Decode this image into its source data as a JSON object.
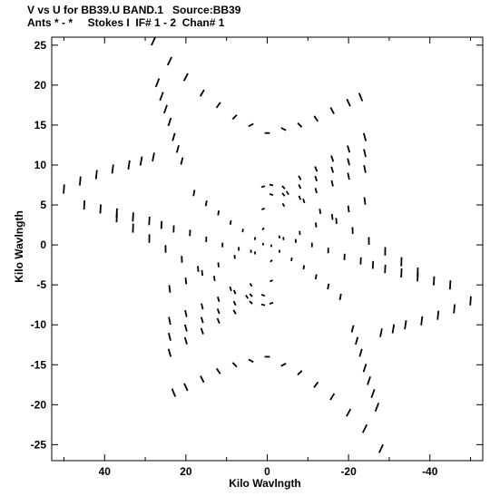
{
  "header": {
    "line1": "V vs U for BB39.U BAND.1   Source:BB39",
    "line2": "Ants * - *     Stokes I  IF# 1 - 2  Chan# 1"
  },
  "chart_data": {
    "type": "scatter",
    "title": "V vs U for BB39.U BAND.1   Source:BB39",
    "subtitle": "Ants * - *     Stokes I  IF# 1 - 2  Chan# 1",
    "xlabel": "Kilo Wavlngth",
    "ylabel": "Kilo Wavlngth",
    "xlim": [
      53,
      -53
    ],
    "ylim": [
      -27,
      26
    ],
    "x_reversed": true,
    "xticks": [
      40,
      20,
      0,
      -20,
      -40
    ],
    "xtick_labels": [
      "40",
      "20",
      "0",
      "-20",
      "-40"
    ],
    "yticks": [
      25,
      20,
      15,
      10,
      5,
      0,
      -5,
      -10,
      -15,
      -20,
      -25
    ],
    "ytick_labels": [
      "25",
      "20",
      "15",
      "10",
      "5",
      "0",
      "-5",
      "-10",
      "-15",
      "-20",
      "-25"
    ],
    "grid": false,
    "marker": "short dash",
    "series": [
      {
        "points": [
          [
            28,
            25.5
          ],
          [
            24,
            23
          ],
          [
            20,
            21
          ],
          [
            16,
            19
          ],
          [
            12,
            17.5
          ],
          [
            8,
            16
          ],
          [
            4,
            15
          ],
          [
            0,
            14
          ],
          [
            -4,
            14.5
          ],
          [
            -8,
            15
          ],
          [
            -12,
            15.8
          ],
          [
            -16,
            16.8
          ],
          [
            -20,
            17.8
          ],
          [
            -23,
            18.5
          ],
          [
            -28,
            -25.5
          ],
          [
            -24,
            -23
          ],
          [
            -20,
            -21
          ],
          [
            -16,
            -19
          ],
          [
            -12,
            -17.5
          ],
          [
            -8,
            -16
          ],
          [
            -4,
            -15
          ],
          [
            0,
            -14
          ],
          [
            4,
            -14.5
          ],
          [
            8,
            -15
          ],
          [
            12,
            -15.8
          ],
          [
            16,
            -16.8
          ],
          [
            20,
            -17.8
          ],
          [
            23,
            -18.5
          ],
          [
            27,
            20.3
          ],
          [
            26,
            18.6
          ],
          [
            25,
            17
          ],
          [
            24,
            15.4
          ],
          [
            23,
            13.5
          ],
          [
            22,
            12
          ],
          [
            21,
            10.5
          ],
          [
            -27,
            -20.3
          ],
          [
            -26,
            -18.6
          ],
          [
            -25,
            -17
          ],
          [
            -24,
            -15.4
          ],
          [
            -23,
            -13.5
          ],
          [
            -22,
            -12
          ],
          [
            -21,
            -10.5
          ],
          [
            50,
            7
          ],
          [
            46,
            8
          ],
          [
            42,
            8.8
          ],
          [
            38,
            9.5
          ],
          [
            34,
            10
          ],
          [
            31,
            10.5
          ],
          [
            28,
            11
          ],
          [
            -50,
            -7
          ],
          [
            -46,
            -8
          ],
          [
            -42,
            -8.8
          ],
          [
            -38,
            -9.5
          ],
          [
            -34,
            -10
          ],
          [
            -31,
            -10.5
          ],
          [
            -28,
            -11
          ],
          [
            45,
            5
          ],
          [
            41,
            4.5
          ],
          [
            37,
            4
          ],
          [
            33,
            3.5
          ],
          [
            29,
            3
          ],
          [
            26,
            2.5
          ],
          [
            23,
            2
          ],
          [
            -45,
            -5
          ],
          [
            -41,
            -4.5
          ],
          [
            -37,
            -4
          ],
          [
            -33,
            -3.5
          ],
          [
            -29,
            -3
          ],
          [
            -26,
            -2.5
          ],
          [
            -23,
            -2
          ],
          [
            37,
            3.4
          ],
          [
            33,
            2.1
          ],
          [
            29,
            0.8
          ],
          [
            25,
            -0.5
          ],
          [
            21,
            -1.8
          ],
          [
            17,
            -3
          ],
          [
            13,
            -4.2
          ],
          [
            9,
            -5.5
          ],
          [
            5,
            -6.5
          ],
          [
            1,
            -7.5
          ],
          [
            -37,
            -3.4
          ],
          [
            -33,
            -2.1
          ],
          [
            -29,
            -0.8
          ],
          [
            -25,
            0.5
          ],
          [
            -21,
            1.8
          ],
          [
            -17,
            3
          ],
          [
            -13,
            4.2
          ],
          [
            -9,
            5.5
          ],
          [
            -5,
            6.5
          ],
          [
            -1,
            7.5
          ],
          [
            24,
            -5.5
          ],
          [
            20,
            -4.5
          ],
          [
            16,
            -3.5
          ],
          [
            12,
            -2.5
          ],
          [
            8,
            -1.5
          ],
          [
            4,
            -0.8
          ],
          [
            -24,
            5.5
          ],
          [
            -20,
            4.5
          ],
          [
            -16,
            3.5
          ],
          [
            -12,
            2.5
          ],
          [
            -8,
            1.5
          ],
          [
            -4,
            0.8
          ],
          [
            24,
            -13.5
          ],
          [
            20,
            -12
          ],
          [
            16,
            -10.8
          ],
          [
            12,
            -9.5
          ],
          [
            8,
            -8.4
          ],
          [
            4,
            -7.2
          ],
          [
            1,
            -6.3
          ],
          [
            -24,
            13.5
          ],
          [
            -20,
            12
          ],
          [
            -16,
            10.8
          ],
          [
            -12,
            9.5
          ],
          [
            -8,
            8.4
          ],
          [
            -4,
            7.2
          ],
          [
            -1,
            6.3
          ],
          [
            24,
            -11.5
          ],
          [
            20,
            -10.4
          ],
          [
            16,
            -9.4
          ],
          [
            12,
            -8.3
          ],
          [
            8,
            -7.3
          ],
          [
            4,
            -6.3
          ],
          [
            -24,
            11.5
          ],
          [
            -20,
            10.4
          ],
          [
            -16,
            9.4
          ],
          [
            -12,
            8.3
          ],
          [
            -8,
            7.3
          ],
          [
            -4,
            6.3
          ],
          [
            24,
            -9.5
          ],
          [
            20,
            -8.6
          ],
          [
            16,
            -7.7
          ],
          [
            12,
            -6.8
          ],
          [
            8,
            -5.9
          ],
          [
            4,
            -5
          ],
          [
            -24,
            9.5
          ],
          [
            -20,
            8.6
          ],
          [
            -16,
            7.7
          ],
          [
            -12,
            6.8
          ],
          [
            -8,
            5.9
          ],
          [
            -4,
            5
          ],
          [
            1,
            7.3
          ],
          [
            1,
            4.5
          ],
          [
            1,
            2
          ],
          [
            -1,
            -2
          ],
          [
            -1,
            -4.5
          ],
          [
            -1,
            -7.3
          ],
          [
            18,
            6.5
          ],
          [
            15,
            5.2
          ],
          [
            12,
            4
          ],
          [
            9,
            2.8
          ],
          [
            6,
            1.8
          ],
          [
            3,
            0.8
          ],
          [
            1,
            0.1
          ],
          [
            -18,
            -6.5
          ],
          [
            -15,
            -5.2
          ],
          [
            -12,
            -4
          ],
          [
            -9,
            -2.8
          ],
          [
            -6,
            -1.8
          ],
          [
            -3,
            -0.8
          ],
          [
            -1,
            -0.1
          ],
          [
            19,
            1.5
          ],
          [
            15,
            0.7
          ],
          [
            11,
            0
          ],
          [
            7,
            -0.5
          ],
          [
            3,
            -1
          ],
          [
            -19,
            -1.5
          ],
          [
            -15,
            -0.7
          ],
          [
            -11,
            0
          ],
          [
            -7,
            0.5
          ],
          [
            -3,
            1
          ]
        ]
      }
    ]
  }
}
